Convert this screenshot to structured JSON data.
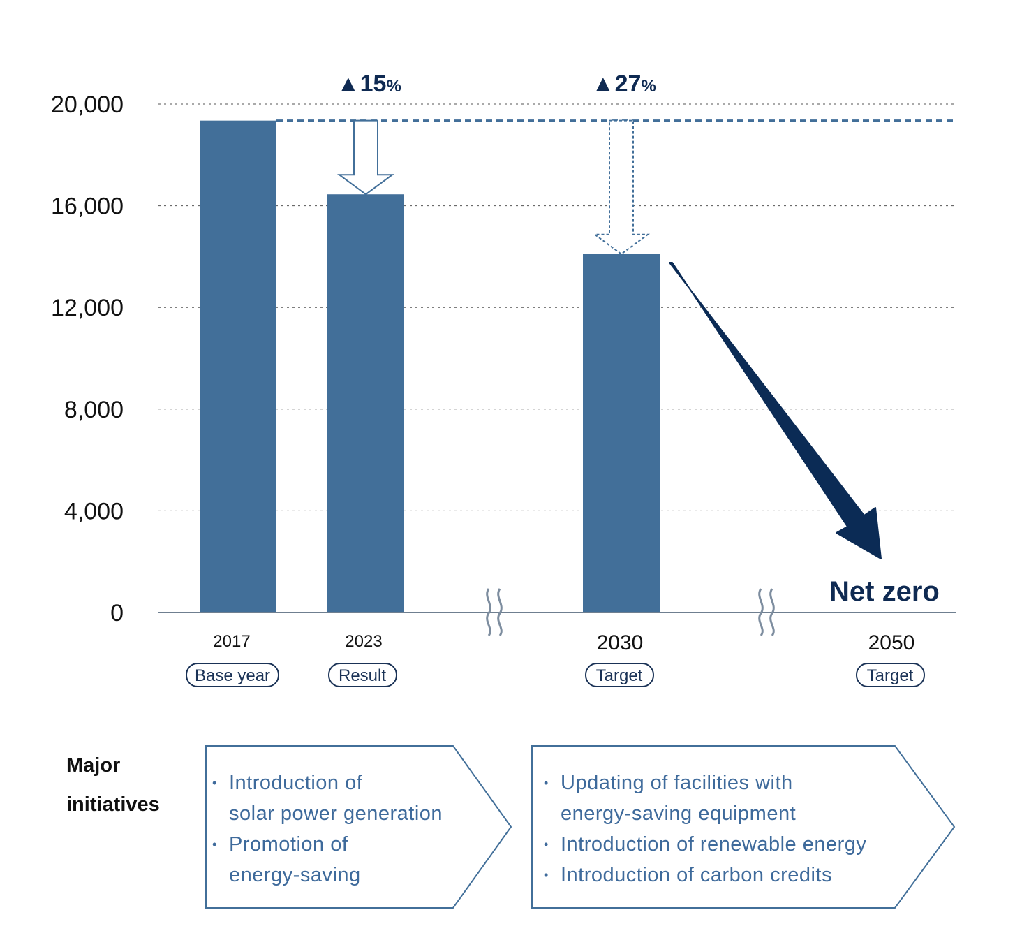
{
  "chart_data": {
    "type": "bar",
    "categories": [
      "2017",
      "2023",
      "2030",
      "2050"
    ],
    "category_labels": [
      "Base year",
      "Result",
      "Target",
      "Target"
    ],
    "values": [
      19350,
      16450,
      14100,
      0
    ],
    "ylim": [
      0,
      20000
    ],
    "yticks": [
      "0",
      "4,000",
      "8,000",
      "12,000",
      "16,000",
      "20,000"
    ],
    "ytick_values": [
      0,
      4000,
      8000,
      12000,
      16000,
      20000
    ],
    "grid": "dotted horizontal",
    "bar_color": "#426f99",
    "arrow_color": "#0b2b55",
    "annotations": [
      {
        "text": "▲15",
        "suffix": "%",
        "category": "2023"
      },
      {
        "text": "▲27",
        "suffix": "%",
        "category": "2030"
      },
      {
        "text": "Net zero",
        "category": "2050"
      }
    ]
  },
  "initiatives": {
    "title_line1": "Major",
    "title_line2": "initiatives",
    "panel1": [
      "Introduction of\nsolar power generation",
      "Promotion of\nenergy-saving"
    ],
    "panel2": [
      "Updating of facilities with\nenergy-saving equipment",
      "Introduction of renewable energy",
      "Introduction of carbon credits"
    ]
  }
}
